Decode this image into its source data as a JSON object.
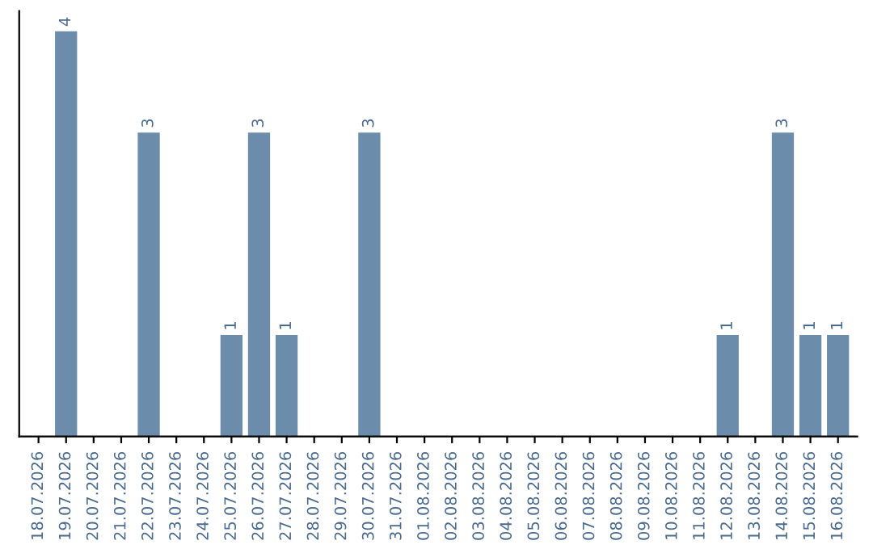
{
  "chart_data": {
    "type": "bar",
    "categories": [
      "18.07.2026",
      "19.07.2026",
      "20.07.2026",
      "21.07.2026",
      "22.07.2026",
      "23.07.2026",
      "24.07.2026",
      "25.07.2026",
      "26.07.2026",
      "27.07.2026",
      "28.07.2026",
      "29.07.2026",
      "30.07.2026",
      "31.07.2026",
      "01.08.2026",
      "02.08.2026",
      "03.08.2026",
      "04.08.2026",
      "05.08.2026",
      "06.08.2026",
      "07.08.2026",
      "08.08.2026",
      "09.08.2026",
      "10.08.2026",
      "11.08.2026",
      "12.08.2026",
      "13.08.2026",
      "14.08.2026",
      "15.08.2026",
      "16.08.2026"
    ],
    "values": [
      0,
      4,
      0,
      0,
      3,
      0,
      0,
      1,
      3,
      1,
      0,
      0,
      3,
      0,
      0,
      0,
      0,
      0,
      0,
      0,
      0,
      0,
      0,
      0,
      0,
      1,
      0,
      3,
      1,
      1
    ],
    "value_labels": [
      null,
      "4",
      null,
      null,
      "3",
      null,
      null,
      "1",
      "3",
      "1",
      null,
      null,
      "3",
      null,
      null,
      null,
      null,
      null,
      null,
      null,
      null,
      null,
      null,
      null,
      null,
      "1",
      null,
      "3",
      "1",
      "1"
    ],
    "color": "#6b8cab",
    "tick_labels": "x",
    "grid": false
  }
}
